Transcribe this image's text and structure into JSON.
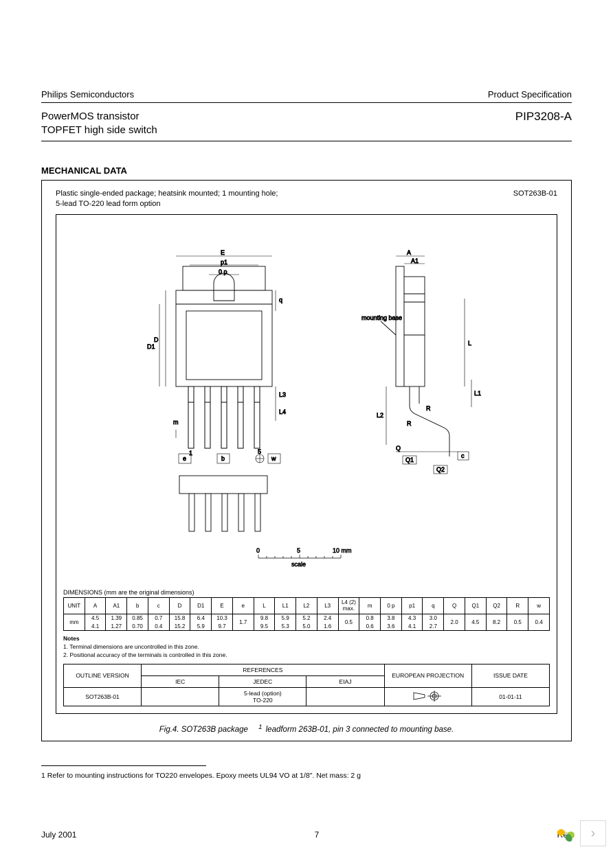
{
  "header": {
    "company": "Philips Semiconductors",
    "doctype": "Product Specification"
  },
  "title": {
    "line1": "PowerMOS transistor",
    "line2": "TOPFET high side switch",
    "part": "PIP3208-A"
  },
  "section": "MECHANICAL DATA",
  "package": {
    "desc1": "Plastic single-ended package; heatsink mounted; 1 mounting hole;",
    "desc2": "5-lead TO-220 lead form option",
    "code": "SOT263B-01",
    "mountbase": "mounting base"
  },
  "scale": {
    "zero": "0",
    "five": "5",
    "ten": "10 mm",
    "label": "scale"
  },
  "dimensions": {
    "title": "DIMENSIONS (mm are the original dimensions)",
    "unit_label": "UNIT",
    "mm_label": "mm",
    "headers": [
      "A",
      "A1",
      "b",
      "c",
      "D",
      "D1",
      "E",
      "e",
      "L",
      "L1",
      "L2",
      "L3",
      "L4 (2) max.",
      "m",
      "0 p",
      "p1",
      "q",
      "Q",
      "Q1",
      "Q2",
      "R",
      "w"
    ],
    "values": [
      [
        "4.5",
        "4.1"
      ],
      [
        "1.39",
        "1.27"
      ],
      [
        "0.85",
        "0.70"
      ],
      [
        "0.7",
        "0.4"
      ],
      [
        "15.8",
        "15.2"
      ],
      [
        "6.4",
        "5.9"
      ],
      [
        "10.3",
        "9.7"
      ],
      [
        "1.7"
      ],
      [
        "9.8",
        "9.5"
      ],
      [
        "5.9",
        "5.3"
      ],
      [
        "5.2",
        "5.0"
      ],
      [
        "2.4",
        "1.6"
      ],
      [
        "0.5"
      ],
      [
        "0.8",
        "0.6"
      ],
      [
        "3.8",
        "3.6"
      ],
      [
        "4.3",
        "4.1"
      ],
      [
        "3.0",
        "2.7"
      ],
      [
        "2.0"
      ],
      [
        "4.5"
      ],
      [
        "8.2"
      ],
      [
        "0.5"
      ],
      [
        "0.4"
      ]
    ]
  },
  "notes": {
    "heading": "Notes",
    "n1": "1. Terminal dimensions are uncontrolled in this zone.",
    "n2": "2. Positional accuracy of the terminals is controlled in this zone."
  },
  "ref_table": {
    "outline_h": "OUTLINE VERSION",
    "references_h": "REFERENCES",
    "iec": "IEC",
    "jedec": "JEDEC",
    "eiaj": "EIAJ",
    "euro_h": "EUROPEAN PROJECTION",
    "issue_h": "ISSUE DATE",
    "outline_v": "SOT263B-01",
    "jedec_v1": "5-lead (option)",
    "jedec_v2": "TO-220",
    "issue_v": "01-01-11"
  },
  "caption": {
    "text_a": "Fig.4.  SOT263B package",
    "sup": "1",
    "text_b": " leadform 263B-01, pin 3 connected to mounting base."
  },
  "footnote": "1 Refer to mounting instructions for TO220 envelopes. Epoxy meets UL94 VO at 1/8\". Net mass: 2 g",
  "footer": {
    "date": "July 2001",
    "page": "7",
    "rev": "Rev"
  },
  "labels": {
    "E": "E",
    "p1": "p1",
    "0p": "0 p",
    "D": "D",
    "D1": "D1",
    "q": "q",
    "L3": "L3",
    "L4": "L4",
    "m": "m",
    "e": "e",
    "b": "b",
    "w": "w",
    "one": "1",
    "five": "5",
    "A": "A",
    "A1": "A1",
    "L": "L",
    "L1": "L1",
    "L2": "L2",
    "R": "R",
    "Q": "Q",
    "Q1": "Q1",
    "Q2": "Q2",
    "c": "c"
  },
  "colors": {
    "stroke": "#000000"
  }
}
